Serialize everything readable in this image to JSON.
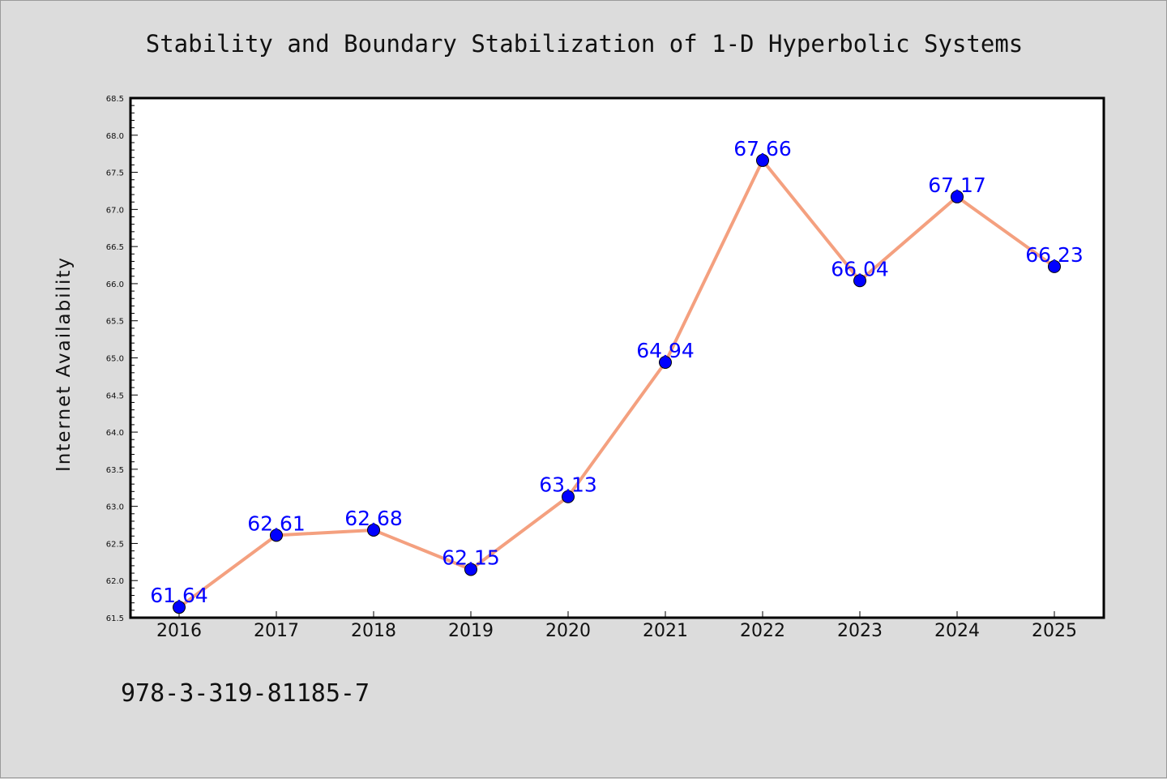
{
  "colors": {
    "background": "#dcdcdc",
    "plot_background": "#ffffff",
    "line": "#f4a07f",
    "marker": "#0000ff",
    "data_label": "#0000ff"
  },
  "footer": {
    "isbn": "978-3-319-81185-7"
  },
  "chart_data": {
    "type": "line",
    "title": "Stability and Boundary Stabilization of 1-D Hyperbolic Systems",
    "xlabel": "",
    "ylabel": "Internet Availability",
    "categories": [
      "2016",
      "2017",
      "2018",
      "2019",
      "2020",
      "2021",
      "2022",
      "2023",
      "2024",
      "2025"
    ],
    "series": [
      {
        "values": [
          61.64,
          62.61,
          62.68,
          62.15,
          63.13,
          64.94,
          67.66,
          66.04,
          67.17,
          66.23
        ]
      }
    ],
    "data_labels": [
      "61.64",
      "62.61",
      "62.68",
      "62.15",
      "63.13",
      "64.94",
      "67.66",
      "66.04",
      "67.17",
      "66.23"
    ],
    "ylim": [
      61.5,
      68.5
    ],
    "yticks": [
      "61.5",
      "62.0",
      "62.5",
      "63.0",
      "63.5",
      "64.0",
      "64.5",
      "65.0",
      "65.5",
      "66.0",
      "66.5",
      "67.0",
      "67.5",
      "68.0",
      "68.5"
    ],
    "grid": false,
    "legend": "none"
  }
}
